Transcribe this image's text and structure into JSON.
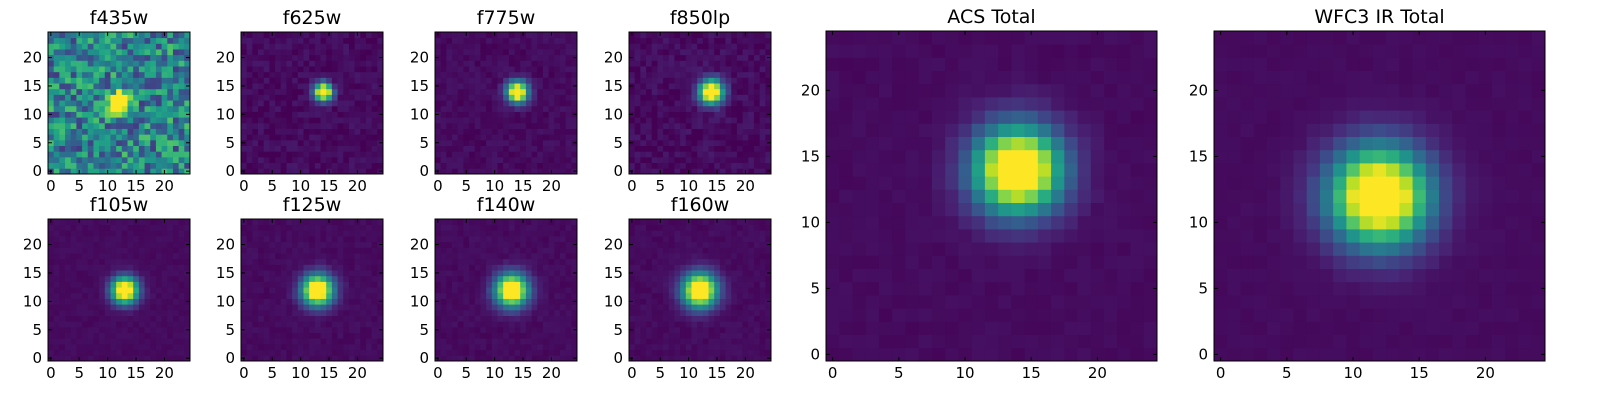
{
  "chart_data": [
    {
      "type": "heatmap",
      "title": "f435w",
      "colormap": "viridis",
      "grid_size": 25,
      "peak": [
        12,
        12
      ],
      "sigma": 1.2,
      "noise": 0.55,
      "xticks": [
        0,
        5,
        10,
        15,
        20
      ],
      "yticks": [
        0,
        5,
        10,
        15,
        20
      ],
      "xlim": [
        0,
        24
      ],
      "ylim": [
        0,
        24
      ]
    },
    {
      "type": "heatmap",
      "title": "f625w",
      "colormap": "viridis",
      "grid_size": 25,
      "peak": [
        14,
        14
      ],
      "sigma": 1.1,
      "noise": 0.08,
      "xticks": [
        0,
        5,
        10,
        15,
        20
      ],
      "yticks": [
        0,
        5,
        10,
        15,
        20
      ],
      "xlim": [
        0,
        24
      ],
      "ylim": [
        0,
        24
      ]
    },
    {
      "type": "heatmap",
      "title": "f775w",
      "colormap": "viridis",
      "grid_size": 25,
      "peak": [
        14,
        14
      ],
      "sigma": 1.3,
      "noise": 0.06,
      "xticks": [
        0,
        5,
        10,
        15,
        20
      ],
      "yticks": [
        0,
        5,
        10,
        15,
        20
      ],
      "xlim": [
        0,
        24
      ],
      "ylim": [
        0,
        24
      ]
    },
    {
      "type": "heatmap",
      "title": "f850lp",
      "colormap": "viridis",
      "grid_size": 25,
      "peak": [
        14,
        14
      ],
      "sigma": 1.5,
      "noise": 0.09,
      "xticks": [
        0,
        5,
        10,
        15,
        20
      ],
      "yticks": [
        0,
        5,
        10,
        15,
        20
      ],
      "xlim": [
        0,
        24
      ],
      "ylim": [
        0,
        24
      ]
    },
    {
      "type": "heatmap",
      "title": "f105w",
      "colormap": "viridis",
      "grid_size": 25,
      "peak": [
        13,
        12
      ],
      "sigma": 1.6,
      "noise": 0.03,
      "xticks": [
        0,
        5,
        10,
        15,
        20
      ],
      "yticks": [
        0,
        5,
        10,
        15,
        20
      ],
      "xlim": [
        0,
        24
      ],
      "ylim": [
        0,
        24
      ]
    },
    {
      "type": "heatmap",
      "title": "f125w",
      "colormap": "viridis",
      "grid_size": 25,
      "peak": [
        13,
        12
      ],
      "sigma": 1.9,
      "noise": 0.04,
      "xticks": [
        0,
        5,
        10,
        15,
        20
      ],
      "yticks": [
        0,
        5,
        10,
        15,
        20
      ],
      "xlim": [
        0,
        24
      ],
      "ylim": [
        0,
        24
      ]
    },
    {
      "type": "heatmap",
      "title": "f140w",
      "colormap": "viridis",
      "grid_size": 25,
      "peak": [
        13,
        12
      ],
      "sigma": 2.0,
      "noise": 0.04,
      "xticks": [
        0,
        5,
        10,
        15,
        20
      ],
      "yticks": [
        0,
        5,
        10,
        15,
        20
      ],
      "xlim": [
        0,
        24
      ],
      "ylim": [
        0,
        24
      ]
    },
    {
      "type": "heatmap",
      "title": "f160w",
      "colormap": "viridis",
      "grid_size": 25,
      "peak": [
        12,
        12
      ],
      "sigma": 2.1,
      "noise": 0.04,
      "xticks": [
        0,
        5,
        10,
        15,
        20
      ],
      "yticks": [
        0,
        5,
        10,
        15,
        20
      ],
      "xlim": [
        0,
        24
      ],
      "ylim": [
        0,
        24
      ]
    },
    {
      "type": "heatmap",
      "title": "ACS Total",
      "colormap": "viridis",
      "grid_size": 25,
      "peak": [
        14,
        14
      ],
      "sigma": 2.3,
      "noise": 0.03,
      "xticks": [
        0,
        5,
        10,
        15,
        20
      ],
      "yticks": [
        0,
        5,
        10,
        15,
        20
      ],
      "xlim": [
        0,
        24
      ],
      "ylim": [
        0,
        24
      ]
    },
    {
      "type": "heatmap",
      "title": "WFC3 IR Total",
      "colormap": "viridis",
      "grid_size": 25,
      "peak": [
        12,
        12
      ],
      "sigma": 2.6,
      "noise": 0.02,
      "xticks": [
        0,
        5,
        10,
        15,
        20
      ],
      "yticks": [
        0,
        5,
        10,
        15,
        20
      ],
      "xlim": [
        0,
        24
      ],
      "ylim": [
        0,
        24
      ]
    }
  ]
}
